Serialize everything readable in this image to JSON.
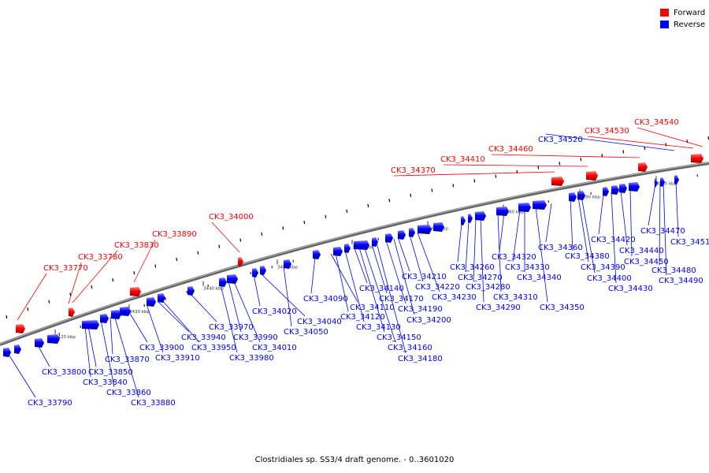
{
  "legend": {
    "forward_label": "Forward",
    "reverse_label": "Reverse",
    "forward_color": "#ff0000",
    "reverse_color": "#0000ff"
  },
  "caption": "Clostridiales sp. SS3/4 draft genome. - 0..3601020",
  "scale_labels": [
    "3420 kbp",
    "3430 kbp",
    "3440 kbp",
    "3450 kbp",
    "3460 kbp",
    "3470 kbp",
    "3480 kbp",
    "3490 kbp",
    "3500 kbp"
  ],
  "forward_genes": [
    "CK3_33770",
    "CK3_33780",
    "CK3_33830",
    "CK3_33890",
    "CK3_34000",
    "CK3_34370",
    "CK3_34410",
    "CK3_34460",
    "CK3_34530",
    "CK3_34540"
  ],
  "reverse_genes": [
    "CK3_33790",
    "CK3_33800",
    "CK3_33840",
    "CK3_33850",
    "CK3_33860",
    "CK3_33870",
    "CK3_33880",
    "CK3_33900",
    "CK3_33910",
    "CK3_33940",
    "CK3_33950",
    "CK3_33970",
    "CK3_33980",
    "CK3_33990",
    "CK3_34010",
    "CK3_34020",
    "CK3_34040",
    "CK3_34050",
    "CK3_34090",
    "CK3_34110",
    "CK3_34120",
    "CK3_34130",
    "CK3_34140",
    "CK3_34150",
    "CK3_34160",
    "CK3_34170",
    "CK3_34180",
    "CK3_34190",
    "CK3_34200",
    "CK3_34210",
    "CK3_34220",
    "CK3_34230",
    "CK3_34260",
    "CK3_34270",
    "CK3_34280",
    "CK3_34290",
    "CK3_34310",
    "CK3_34320",
    "CK3_34330",
    "CK3_34340",
    "CK3_34350",
    "CK3_34360",
    "CK3_34380",
    "CK3_34390",
    "CK3_34400",
    "CK3_34420",
    "CK3_34430",
    "CK3_34440",
    "CK3_34450",
    "CK3_34470",
    "CK3_34480",
    "CK3_34490",
    "CK3_34510",
    "CK3_34520"
  ]
}
